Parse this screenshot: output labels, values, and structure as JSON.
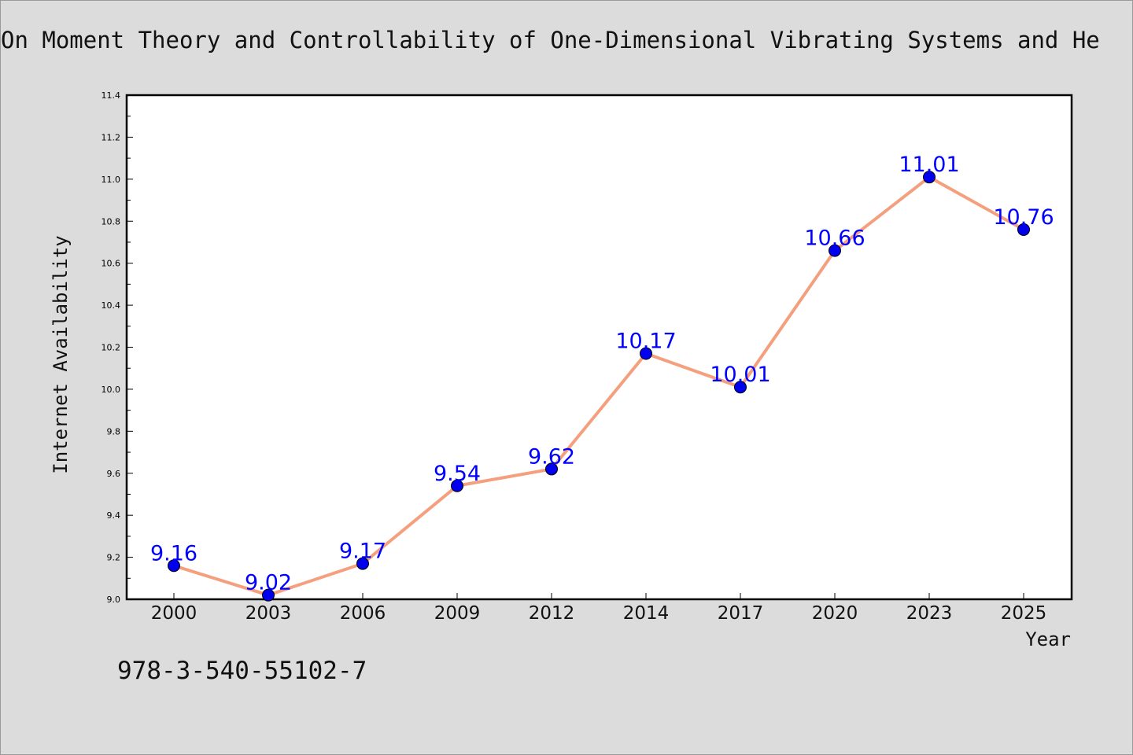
{
  "chart_data": {
    "type": "line",
    "title": "On Moment Theory and Controllability of One-Dimensional Vibrating Systems and He",
    "xlabel": "Year",
    "ylabel": "Internet Availability",
    "categories": [
      "2000",
      "2003",
      "2006",
      "2009",
      "2012",
      "2014",
      "2017",
      "2020",
      "2023",
      "2025"
    ],
    "values": [
      9.16,
      9.02,
      9.17,
      9.54,
      9.62,
      10.17,
      10.01,
      10.66,
      11.01,
      10.76
    ],
    "data_labels": [
      "9.16",
      "9.02",
      "9.17",
      "9.54",
      "9.62",
      "10.17",
      "10.01",
      "10.66",
      "11.01",
      "10.76"
    ],
    "ylim": [
      9.0,
      11.4
    ],
    "y_ticks": [
      "9.0",
      "9.2",
      "9.4",
      "9.6",
      "9.8",
      "10.0",
      "10.2",
      "10.4",
      "10.6",
      "10.8",
      "11.0",
      "11.2",
      "11.4"
    ],
    "grid": false,
    "legend": "none",
    "colors": {
      "line": "#f4a07e",
      "marker": "#0000ee",
      "data_label": "#0000ff",
      "plot_background": "#ffffff",
      "page_background": "#dcdcdc"
    }
  },
  "footer": {
    "isbn": "978-3-540-55102-7"
  }
}
